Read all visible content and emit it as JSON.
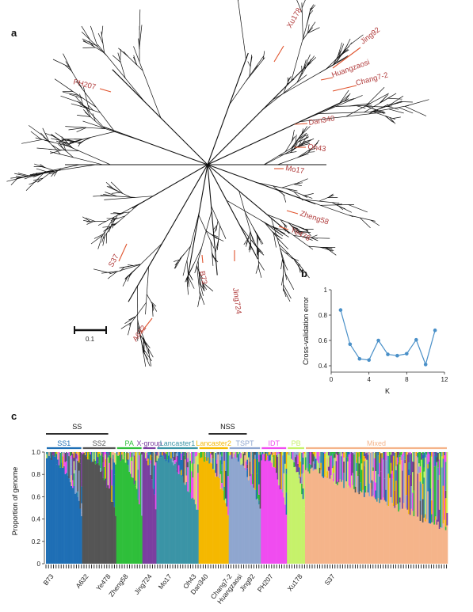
{
  "figure": {
    "panel_labels": [
      "a",
      "b",
      "c"
    ],
    "scale_bar_label": "0.1"
  },
  "tree": {
    "accession_labels": [
      "Xu178",
      "Jing92",
      "Huangzaosi",
      "Chang7-2",
      "PH207",
      "Dan340",
      "Oh43",
      "Mo17",
      "Zheng58",
      "Ye478",
      "S37",
      "B73",
      "Jing724",
      "A632"
    ],
    "label_color": "#b03a3a",
    "branch_color": "#111111"
  },
  "chart_data": [
    {
      "type": "line",
      "panel": "b",
      "xlabel": "K",
      "ylabel": "Cross-validation error",
      "x": [
        1,
        2,
        3,
        4,
        5,
        6,
        7,
        8,
        9,
        10,
        11
      ],
      "y": [
        0.84,
        0.57,
        0.455,
        0.445,
        0.6,
        0.49,
        0.48,
        0.495,
        0.605,
        0.41,
        0.68
      ],
      "xlim": [
        0,
        12
      ],
      "ylim": [
        0.35,
        1.0
      ],
      "xticks": [
        "0",
        "4",
        "8",
        "12"
      ],
      "yticks": [
        "0.4",
        "0.6",
        "0.8",
        "1"
      ],
      "color": "#4a90c8",
      "grid": false
    },
    {
      "type": "bar",
      "panel": "c",
      "subtype": "stacked-admixture",
      "ylabel": "Proportion of genome",
      "ylim": [
        0,
        1.0
      ],
      "yticks": [
        "0",
        "0.2",
        "0.4",
        "0.6",
        "0.8",
        "1.0"
      ],
      "super_groups": [
        {
          "label": "SS",
          "start": 0.0,
          "end": 0.155
        },
        {
          "label": "NSS",
          "start": 0.405,
          "end": 0.5
        }
      ],
      "groups": [
        {
          "name": "SS1",
          "color": "#1f6fb5",
          "fraction": 0.09
        },
        {
          "name": "SS2",
          "color": "#555555",
          "fraction": 0.085
        },
        {
          "name": "PA",
          "color": "#2fbf3a",
          "fraction": 0.065
        },
        {
          "name": "X-group",
          "color": "#7b3fa0",
          "fraction": 0.035
        },
        {
          "name": "Lancaster1",
          "color": "#3b94a6",
          "fraction": 0.105
        },
        {
          "name": "Lancaster2",
          "color": "#f5b800",
          "fraction": 0.075
        },
        {
          "name": "TSPT",
          "color": "#8fa6cf",
          "fraction": 0.08
        },
        {
          "name": "IDT",
          "color": "#f04cf0",
          "fraction": 0.065
        },
        {
          "name": "PB",
          "color": "#c6f26b",
          "fraction": 0.045
        },
        {
          "name": "Mixed",
          "color": "#f5b48a",
          "fraction": 0.355
        }
      ],
      "bottom_labels": [
        "B73",
        "A632",
        "Ye478",
        "Zheng58",
        "Jing724",
        "Mo17",
        "Oh43",
        "Dan340",
        "Chang7-2",
        "Huangzaosi",
        "Jing92",
        "PH207",
        "Xu178",
        "S37"
      ]
    }
  ]
}
